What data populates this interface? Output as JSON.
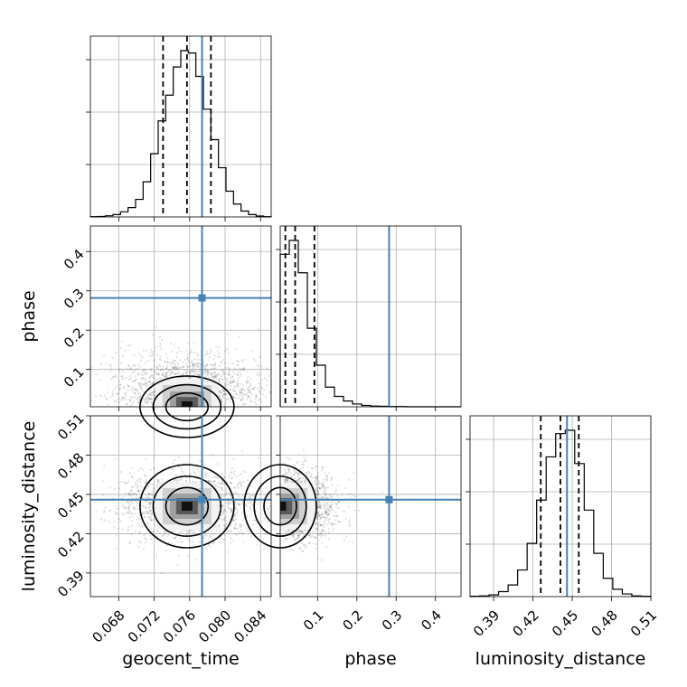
{
  "chart_data": {
    "type": "corner",
    "parameters": [
      {
        "name": "geocent_time",
        "label": "geocent_time",
        "range": [
          0.0648,
          0.0852
        ],
        "ticks": [
          0.068,
          0.072,
          0.076,
          0.08,
          0.084
        ],
        "tick_labels": [
          "0.068",
          "0.072",
          "0.076",
          "0.080",
          "0.084"
        ],
        "truth": 0.0774,
        "quantiles": [
          0.073,
          0.0757,
          0.0784
        ],
        "hist_values": [
          1,
          2,
          5,
          10,
          22,
          40,
          75,
          150,
          270,
          410,
          520,
          640,
          710,
          700,
          600,
          460,
          330,
          210,
          110,
          55,
          25,
          10,
          4,
          1
        ]
      },
      {
        "name": "phase",
        "label": "phase",
        "range": [
          0.005,
          0.465
        ],
        "ticks": [
          0.1,
          0.2,
          0.3,
          0.4
        ],
        "tick_labels": [
          "0.1",
          "0.2",
          "0.3",
          "0.4"
        ],
        "truth": 0.282,
        "quantiles": [
          0.018,
          0.043,
          0.092
        ],
        "hist_values": [
          660,
          720,
          580,
          340,
          180,
          85,
          45,
          25,
          12,
          6,
          3,
          2,
          1,
          1,
          0,
          0,
          0,
          0,
          0,
          0
        ]
      },
      {
        "name": "luminosity_distance",
        "label": "luminosity_distance",
        "range": [
          0.372,
          0.51
        ],
        "ticks": [
          0.39,
          0.42,
          0.45,
          0.48,
          0.51
        ],
        "tick_labels": [
          "0.39",
          "0.42",
          "0.45",
          "0.48",
          "0.51"
        ],
        "truth": 0.446,
        "quantiles": [
          0.426,
          0.441,
          0.455
        ],
        "hist_values": [
          1,
          2,
          5,
          15,
          35,
          80,
          160,
          290,
          420,
          490,
          500,
          400,
          260,
          130,
          55,
          22,
          8,
          2,
          1
        ]
      }
    ],
    "y_tick_labels": {
      "phase": [
        "0.1",
        "0.2",
        "0.3",
        "0.4"
      ],
      "luminosity_distance": [
        "0.39",
        "0.42",
        "0.45",
        "0.48",
        "0.51"
      ]
    },
    "grid": true,
    "truth_color": "#4682b4",
    "contour_color": "#000000"
  }
}
